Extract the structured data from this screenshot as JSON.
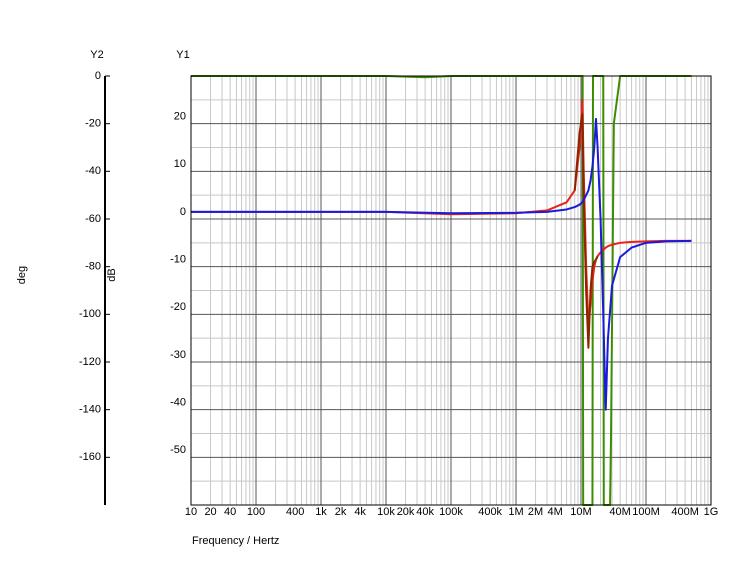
{
  "chart_data": {
    "type": "line",
    "xscale": "log",
    "grid": true,
    "x_label": "Frequency / Hertz",
    "y_label": "dB",
    "y2_label": "deg",
    "y_axis_name": "Y1",
    "y2_axis_name": "Y2",
    "xlim": [
      10,
      1000000000
    ],
    "xticks": [
      10,
      20,
      40,
      100,
      400,
      {
        "value": 1000,
        "label": "1k"
      },
      {
        "value": 2000,
        "label": "2k"
      },
      {
        "value": 4000,
        "label": "4k"
      },
      {
        "value": 10000,
        "label": "10k"
      },
      {
        "value": 20000,
        "label": "20k"
      },
      {
        "value": 40000,
        "label": "40k"
      },
      {
        "value": 100000,
        "label": "100k"
      },
      {
        "value": 400000,
        "label": "400k"
      },
      {
        "value": 1000000,
        "label": "1M"
      },
      {
        "value": 2000000,
        "label": "2M"
      },
      {
        "value": 4000000,
        "label": "4M"
      },
      {
        "value": 10000000,
        "label": "10M"
      },
      {
        "value": 40000000,
        "label": "40M"
      },
      {
        "value": 100000000,
        "label": "100M"
      },
      {
        "value": 400000000,
        "label": "400M"
      },
      {
        "value": 1000000000,
        "label": "1G"
      }
    ],
    "ylim": [
      -60,
      30
    ],
    "yticks": [
      20,
      10,
      0,
      -10,
      -20,
      -30,
      -40,
      -50
    ],
    "y2lim": [
      -180,
      0
    ],
    "y2ticks": [
      0,
      -20,
      -40,
      -60,
      -80,
      -100,
      -120,
      -140,
      -160
    ],
    "x": [
      10,
      100,
      1000,
      10000,
      100000,
      1000000,
      3000000,
      6000000,
      8000000,
      9500000,
      10500000,
      11000000,
      12000000,
      13000000,
      14000000,
      15000000,
      16000000,
      17000000,
      18000000,
      20000000,
      22000000,
      24000000,
      26000000,
      30000000,
      40000000,
      60000000,
      100000000,
      200000000,
      500000000
    ],
    "series": [
      {
        "color": "#e8231a",
        "values": [
          1.5,
          1.5,
          1.5,
          1.5,
          1.0,
          1.2,
          1.8,
          3.5,
          6,
          15,
          25,
          10,
          -10,
          -22,
          -18,
          -13,
          -10,
          -8.5,
          -7.8,
          -7,
          -6.5,
          -6,
          -5.7,
          -5.4,
          -5,
          -4.8,
          -4.7,
          -4.6,
          -4.6
        ]
      },
      {
        "color": "#1a1adb",
        "values": [
          1.5,
          1.5,
          1.5,
          1.5,
          1.2,
          1.3,
          1.5,
          2,
          2.5,
          3,
          3.5,
          4,
          5,
          6,
          8,
          11,
          15,
          21,
          15,
          0,
          -20,
          -40,
          -25,
          -14,
          -8,
          -6,
          -5,
          -4.7,
          -4.6
        ]
      },
      {
        "color": "#8b2500",
        "values": [
          null,
          null,
          null,
          null,
          null,
          null,
          null,
          null,
          6,
          18,
          22,
          5,
          -15,
          -27,
          -15,
          -10,
          -9,
          -8.5,
          -7.8,
          null,
          null,
          null,
          null,
          null,
          null,
          null,
          null,
          null,
          null
        ]
      },
      {
        "color": "#3c8c00",
        "axis": "y2",
        "x": [
          10,
          10000,
          40000,
          100000,
          1000000,
          10600000,
          10800000,
          15000000,
          15300000,
          22000000,
          22400000,
          28000000,
          29000000,
          32000000,
          40000000,
          500000000
        ],
        "values": [
          0,
          0,
          -0.5,
          0,
          0,
          0,
          -180,
          -180,
          0,
          0,
          -180,
          -180,
          -150,
          -20,
          0,
          0
        ]
      }
    ]
  }
}
